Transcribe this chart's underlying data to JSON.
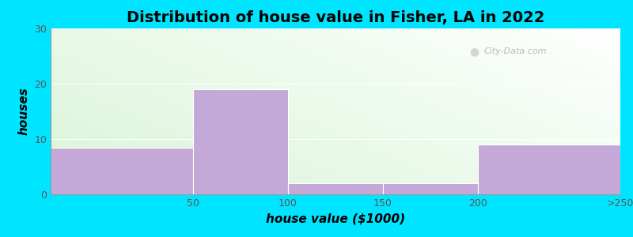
{
  "title": "Distribution of house value in Fisher, LA in 2022",
  "xlabel": "house value ($1000)",
  "ylabel": "houses",
  "bar_values": [
    8.5,
    19,
    2,
    2,
    9
  ],
  "bar_left_edges": [
    0,
    75,
    125,
    175,
    225
  ],
  "bar_widths": [
    75,
    50,
    50,
    50,
    75
  ],
  "bar_color": "#c4a8d8",
  "xtick_positions": [
    75,
    125,
    175,
    225,
    300
  ],
  "xtick_labels": [
    "50",
    "100",
    "150",
    "200",
    ">250"
  ],
  "ytick_positions": [
    0,
    10,
    20,
    30
  ],
  "ytick_labels": [
    "0",
    "10",
    "20",
    "30"
  ],
  "ylim": [
    0,
    30
  ],
  "xlim": [
    0,
    300
  ],
  "background_outer": "#00e5ff",
  "grid_color": "#ffffff",
  "title_fontsize": 14,
  "axis_label_fontsize": 11,
  "tick_fontsize": 9,
  "watermark_text": "City-Data.com"
}
